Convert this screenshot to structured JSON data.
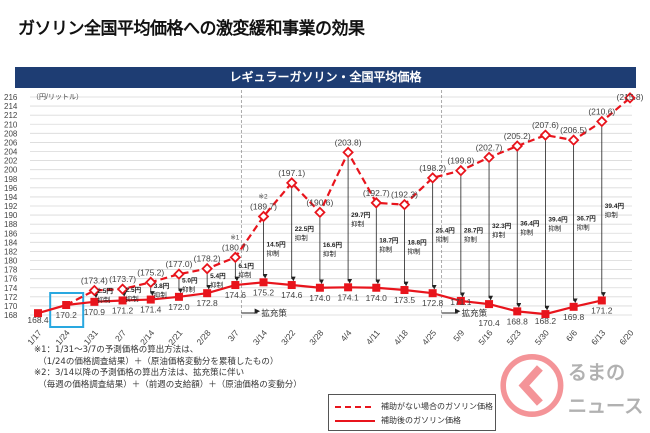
{
  "title": "ガソリン全国平均価格への激変緩和事業の効果",
  "chart_data": {
    "type": "line",
    "title": "レギュラーガソリン・全国平均価格",
    "ylabel": "（円/リットル）",
    "ylim": [
      168,
      216
    ],
    "ytick_step": 2,
    "grid": true,
    "legend_placement": "bottom-right",
    "categories": [
      "1/17",
      "1/24",
      "1/31",
      "2/7",
      "2/14",
      "2/21",
      "2/28",
      "3/7",
      "3/14",
      "3/22",
      "3/28",
      "4/4",
      "4/11",
      "4/18",
      "4/25",
      "5/9",
      "5/16",
      "5/23",
      "5/30",
      "6/6",
      "6/13",
      "6/20"
    ],
    "series": [
      {
        "name": "補助がない場合のガソリン価格",
        "style": "dashed",
        "color": "#e8141c",
        "values": [
          null,
          170.2,
          173.4,
          173.7,
          175.2,
          177.0,
          178.2,
          180.7,
          189.7,
          197.1,
          190.6,
          203.8,
          192.7,
          192.3,
          198.2,
          199.8,
          202.7,
          205.2,
          207.6,
          206.5,
          210.6,
          215.8
        ]
      },
      {
        "name": "補助後のガソリン価格",
        "style": "solid",
        "color": "#e8141c",
        "values": [
          168.4,
          170.2,
          170.9,
          171.2,
          171.4,
          172.0,
          172.8,
          174.6,
          175.2,
          174.6,
          174.0,
          174.1,
          174.0,
          173.5,
          172.8,
          171.1,
          170.4,
          168.8,
          168.2,
          169.8,
          171.2,
          null
        ]
      }
    ],
    "suppression": [
      null,
      null,
      "2.5円",
      "2.5円",
      "3.8円",
      "5.0円",
      "5.4円",
      "6.1円",
      "14.5円",
      "22.5円",
      "16.6円",
      "29.7円",
      "18.7円",
      "18.8円",
      "25.4円",
      "28.7円",
      "32.3円",
      "36.4円",
      "39.4円",
      "36.7円",
      "39.4円",
      null
    ],
    "suppression_suffix": "抑制",
    "annotations": [
      {
        "text": "※1",
        "at": "3/7"
      },
      {
        "text": "※2",
        "at": "3/14"
      },
      {
        "text": "拡充策",
        "at": "3/7"
      },
      {
        "text": "拡充策",
        "at": "4/25"
      }
    ],
    "highlight_category": "1/24",
    "highlight_color": "#29a8e0"
  },
  "notes": [
    "※1：1/31～3/7の予測価格の算出方法は、",
    "　（1/24の価格調査結果）＋（原油価格変動分を累積したもの）",
    "※2：3/14以降の予測価格の算出方法は、拡充策に伴い",
    "　（毎週の価格調査結果）＋（前週の支給額）＋（原油価格の変動分）"
  ],
  "logo_text": "くるまのニュース"
}
